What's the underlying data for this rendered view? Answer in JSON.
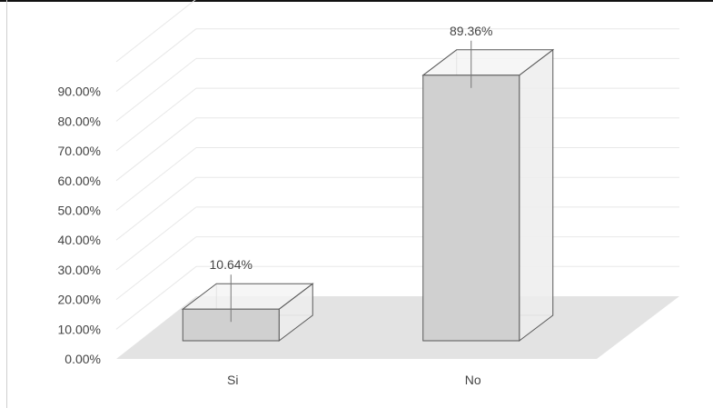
{
  "chart_data": {
    "type": "bar",
    "categories": [
      "Si",
      "No"
    ],
    "values": [
      10.64,
      89.36
    ],
    "data_labels": [
      "10.64%",
      "89.36%"
    ],
    "y_ticks": [
      "0.00%",
      "10.00%",
      "20.00%",
      "30.00%",
      "40.00%",
      "50.00%",
      "60.00%",
      "70.00%",
      "80.00%",
      "90.00%"
    ],
    "ylim": [
      0,
      100
    ],
    "grid": true,
    "style": "3d",
    "colors": {
      "bar_front": "#d0d0d0",
      "bar_side": "#ededed",
      "bar_edge": "#5a5a5a",
      "floor": "#e3e3e3",
      "grid": "#e8e8e8",
      "text": "#444444"
    }
  }
}
